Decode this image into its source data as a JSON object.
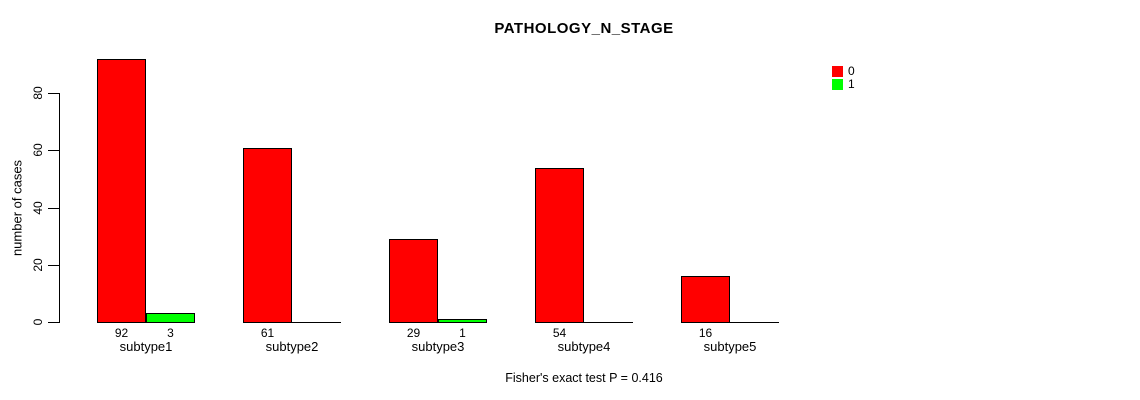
{
  "chart_data": {
    "type": "bar",
    "title": "PATHOLOGY_N_STAGE",
    "ylabel": "number of cases",
    "xlabel": "",
    "categories": [
      "subtype1",
      "subtype2",
      "subtype3",
      "subtype4",
      "subtype5"
    ],
    "series": [
      {
        "name": "0",
        "color": "#FF0000",
        "values": [
          92,
          61,
          29,
          54,
          16
        ]
      },
      {
        "name": "1",
        "color": "#00FF00",
        "values": [
          3,
          0,
          1,
          0,
          0
        ]
      }
    ],
    "bar_value_labels": {
      "shown": true,
      "rule": "label shown under each bar only when value > 0",
      "labels_per_category": [
        [
          "92",
          "3"
        ],
        [
          "61"
        ],
        [
          "29",
          "1"
        ],
        [
          "54"
        ],
        [
          "16"
        ]
      ]
    },
    "yticks": [
      0,
      20,
      40,
      60,
      80
    ],
    "ylim": [
      0,
      92
    ],
    "grid": false,
    "legend": {
      "position": "top-right",
      "items": [
        {
          "label": "0",
          "color": "#FF0000"
        },
        {
          "label": "1",
          "color": "#00FF00"
        }
      ]
    },
    "annotation": "Fisher's exact test P = 0.416",
    "colors": {
      "axis": "#000000",
      "text": "#000000",
      "background": "#ffffff"
    }
  }
}
